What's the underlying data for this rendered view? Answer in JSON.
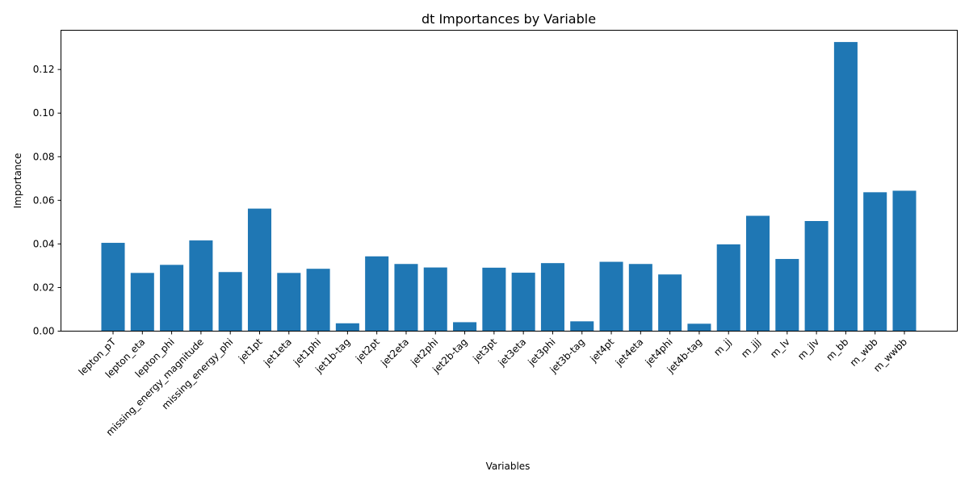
{
  "chart_data": {
    "type": "bar",
    "title": "dt Importances by Variable",
    "xlabel": "Variables",
    "ylabel": "Importance",
    "ylim": [
      0,
      0.138
    ],
    "yticks": [
      "0.00",
      "0.02",
      "0.04",
      "0.06",
      "0.08",
      "0.10",
      "0.12"
    ],
    "bar_color": "#1f77b4",
    "grid": false,
    "categories": [
      "lepton_pT",
      "lepton_eta",
      "lepton_phi",
      "missing_energy_magnitude",
      "missing_energy_phi",
      "jet1pt",
      "jet1eta",
      "jet1phi",
      "jet1b-tag",
      "jet2pt",
      "jet2eta",
      "jet2phi",
      "jet2b-tag",
      "jet3pt",
      "jet3eta",
      "jet3phi",
      "jet3b-tag",
      "jet4pt",
      "jet4eta",
      "jet4phi",
      "jet4b-tag",
      "m_jj",
      "m_jjj",
      "m_lv",
      "m_jlv",
      "m_bb",
      "m_wbb",
      "m_wwbb"
    ],
    "values": [
      0.0405,
      0.0267,
      0.0304,
      0.0416,
      0.0271,
      0.0562,
      0.0267,
      0.0286,
      0.0036,
      0.0343,
      0.0308,
      0.0292,
      0.0041,
      0.0291,
      0.0268,
      0.0312,
      0.0045,
      0.0318,
      0.0308,
      0.026,
      0.0034,
      0.0398,
      0.0529,
      0.0331,
      0.0505,
      0.1326,
      0.0637,
      0.0644
    ]
  }
}
